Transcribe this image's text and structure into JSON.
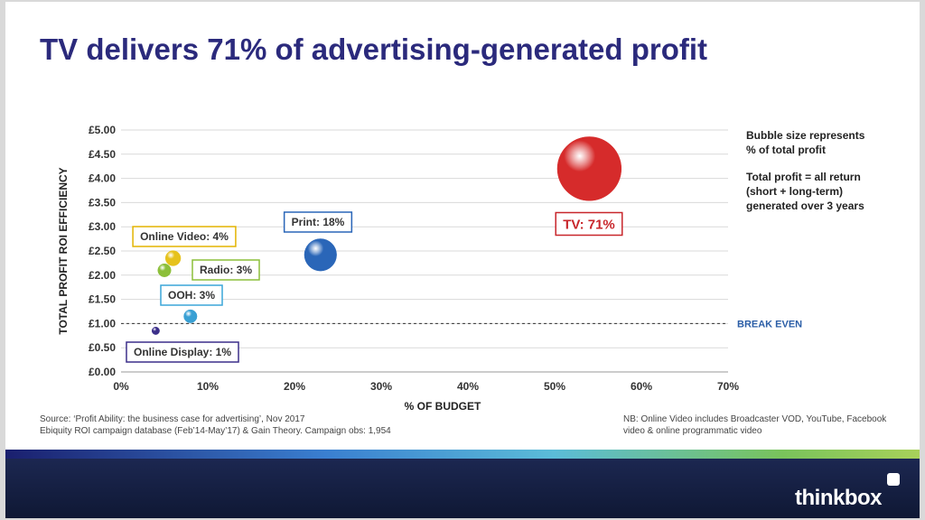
{
  "slide": {
    "title": "TV delivers 71% of  advertising-generated profit",
    "notes": {
      "bubble_size_line1": "Bubble size represents",
      "bubble_size_line2": "% of total profit",
      "total_profit_line1": "Total profit = all return",
      "total_profit_line2": "(short + long-term)",
      "total_profit_line3": "generated over 3 years"
    },
    "source_line1": "Source: ‘Profit Ability: the business case for advertising’, Nov 2017",
    "source_line2": "Ebiquity ROI campaign database (Feb’14-May’17) & Gain Theory. Campaign obs: 1,954",
    "nb_line1": "NB: Online Video includes Broadcaster VOD, YouTube, Facebook",
    "nb_line2": "video & online programmatic video",
    "logo_text": "thinkbox",
    "colors": {
      "title": "#2b2a7c",
      "footer": "#1c2751"
    }
  },
  "chart_data": {
    "type": "scatter",
    "title": "",
    "xlabel": "% OF BUDGET",
    "ylabel": "TOTAL PROFIT ROI EFFICIENCY",
    "xlim": [
      0,
      70
    ],
    "ylim": [
      0,
      5
    ],
    "x_ticks": [
      "0%",
      "10%",
      "20%",
      "30%",
      "40%",
      "50%",
      "60%",
      "70%"
    ],
    "y_ticks": [
      "£0.00",
      "£0.50",
      "£1.00",
      "£1.50",
      "£2.00",
      "£2.50",
      "£3.00",
      "£3.50",
      "£4.00",
      "£4.50",
      "£5.00"
    ],
    "grid": "horizontal",
    "reference_line": {
      "y": 1.0,
      "label": "BREAK EVEN",
      "color": "#2b5ea7"
    },
    "points": [
      {
        "label": "TV: 71%",
        "x": 54,
        "y": 4.2,
        "size": 71,
        "color": "#d62b2b",
        "label_color": "#c8262b"
      },
      {
        "label": "Print: 18%",
        "x": 23,
        "y": 2.42,
        "size": 18,
        "color": "#2a66b8",
        "label_color": "#2a66b8"
      },
      {
        "label": "Online Video: 4%",
        "x": 6,
        "y": 2.35,
        "size": 4,
        "color": "#e6c21c",
        "label_color": "#e3b400"
      },
      {
        "label": "Radio: 3%",
        "x": 5,
        "y": 2.1,
        "size": 3,
        "color": "#8cbf3a",
        "label_color": "#8cbf3a"
      },
      {
        "label": "OOH: 3%",
        "x": 8,
        "y": 1.15,
        "size": 3,
        "color": "#39a0d4",
        "label_color": "#3aa6d8"
      },
      {
        "label": "Online Display: 1%",
        "x": 4,
        "y": 0.85,
        "size": 1,
        "color": "#3c2f8a",
        "label_color": "#3c2f8a"
      }
    ]
  }
}
